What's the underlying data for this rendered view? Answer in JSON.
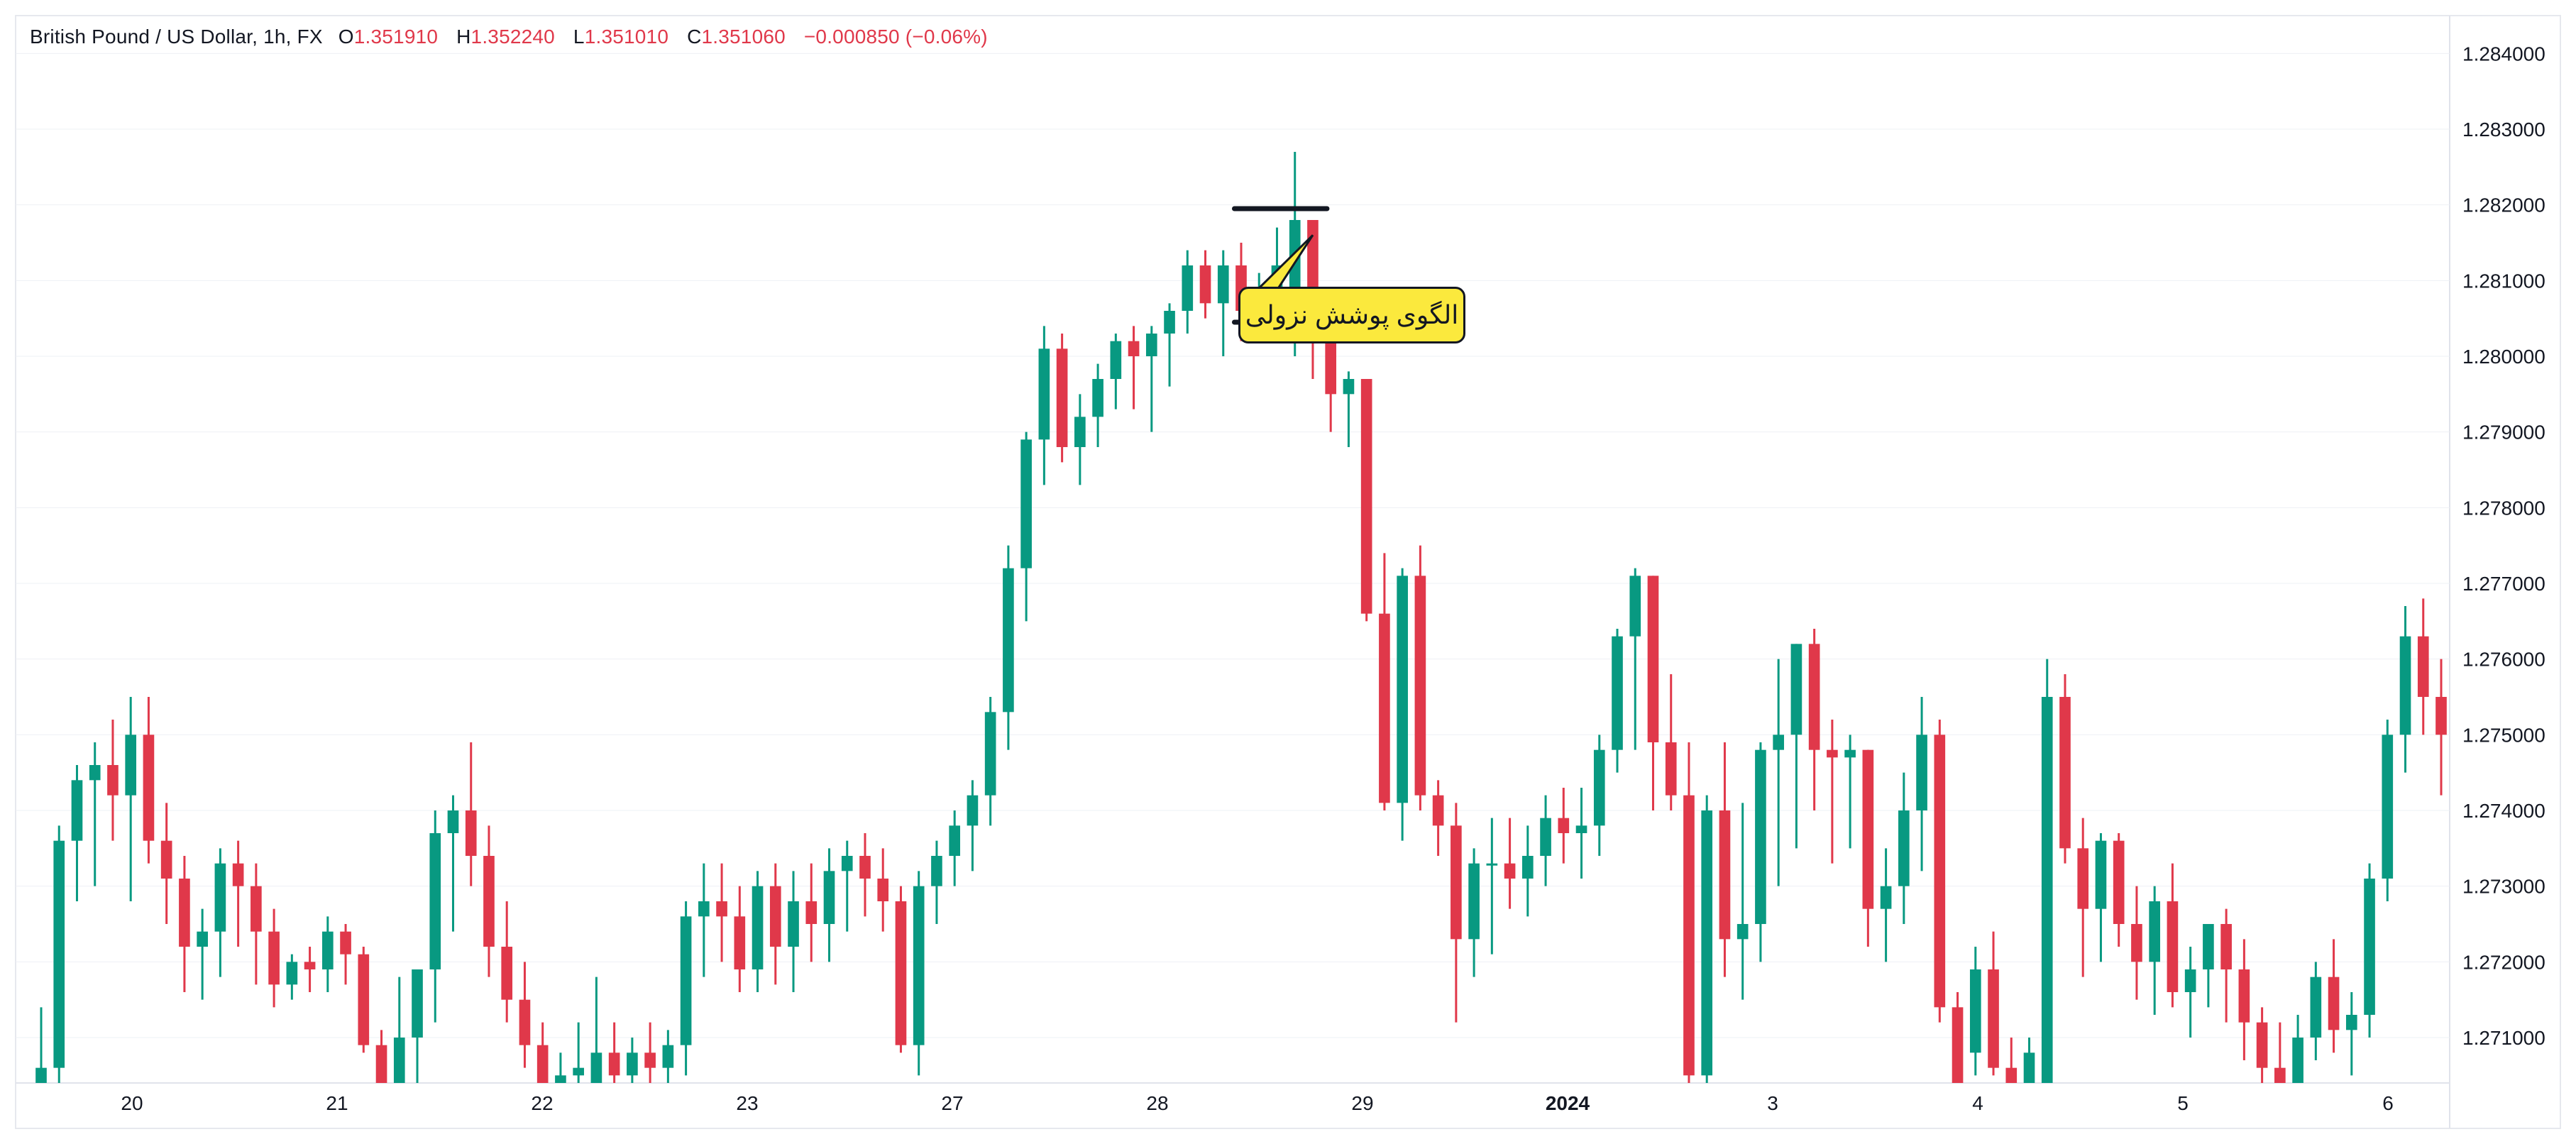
{
  "header": {
    "symbol": "British Pound / US Dollar, 1h, FX",
    "open_label": "O",
    "open": "1.351910",
    "high_label": "H",
    "high": "1.352240",
    "low_label": "L",
    "low": "1.351010",
    "close_label": "C",
    "close": "1.351060",
    "change": "−0.000850 (−0.06%)"
  },
  "annotation": {
    "text": "الگوی پوشش نزولی"
  },
  "colors": {
    "up": "#089981",
    "down": "#e0384a",
    "grid": "#eef0f4",
    "text": "#131722",
    "annotation_bg": "#fbe93d"
  },
  "chart_data": {
    "type": "candlestick",
    "ylim": [
      1.2704,
      1.2845
    ],
    "y_ticks": [
      "1.284000",
      "1.283000",
      "1.282000",
      "1.281000",
      "1.280000",
      "1.279000",
      "1.278000",
      "1.277000",
      "1.276000",
      "1.275000",
      "1.274000",
      "1.273000",
      "1.272000",
      "1.271000"
    ],
    "x_ticks": [
      "20",
      "21",
      "22",
      "23",
      "27",
      "28",
      "29",
      "2024",
      "3",
      "4",
      "5",
      "6"
    ],
    "pattern_levels": [
      1.28195,
      1.28045
    ],
    "candles": [
      [
        1.27,
        1.2714,
        1.2698,
        1.2706
      ],
      [
        1.2706,
        1.2738,
        1.27,
        1.2736
      ],
      [
        1.2736,
        1.2746,
        1.2728,
        1.2744
      ],
      [
        1.2744,
        1.2749,
        1.273,
        1.2746
      ],
      [
        1.2746,
        1.2752,
        1.2736,
        1.2742
      ],
      [
        1.2742,
        1.2755,
        1.2728,
        1.275
      ],
      [
        1.275,
        1.2755,
        1.2733,
        1.2736
      ],
      [
        1.2736,
        1.2741,
        1.2725,
        1.2731
      ],
      [
        1.2731,
        1.2734,
        1.2716,
        1.2722
      ],
      [
        1.2722,
        1.2727,
        1.2715,
        1.2724
      ],
      [
        1.2724,
        1.2735,
        1.2718,
        1.2733
      ],
      [
        1.2733,
        1.2736,
        1.2722,
        1.273
      ],
      [
        1.273,
        1.2733,
        1.2717,
        1.2724
      ],
      [
        1.2724,
        1.2727,
        1.2714,
        1.2717
      ],
      [
        1.2717,
        1.2721,
        1.2715,
        1.272
      ],
      [
        1.272,
        1.2722,
        1.2716,
        1.2719
      ],
      [
        1.2719,
        1.2726,
        1.2716,
        1.2724
      ],
      [
        1.2724,
        1.2725,
        1.2717,
        1.2721
      ],
      [
        1.2721,
        1.2722,
        1.2708,
        1.2709
      ],
      [
        1.2709,
        1.2711,
        1.2702,
        1.2703
      ],
      [
        1.2704,
        1.2718,
        1.27,
        1.271
      ],
      [
        1.271,
        1.2719,
        1.2703,
        1.2719
      ],
      [
        1.2719,
        1.274,
        1.2712,
        1.2737
      ],
      [
        1.2737,
        1.2742,
        1.2724,
        1.274
      ],
      [
        1.274,
        1.2749,
        1.273,
        1.2734
      ],
      [
        1.2734,
        1.2738,
        1.2718,
        1.2722
      ],
      [
        1.2722,
        1.2728,
        1.2712,
        1.2715
      ],
      [
        1.2715,
        1.272,
        1.2706,
        1.2709
      ],
      [
        1.2709,
        1.2712,
        1.2698,
        1.2702
      ],
      [
        1.2702,
        1.2708,
        1.27,
        1.2705
      ],
      [
        1.2705,
        1.2712,
        1.27,
        1.2706
      ],
      [
        1.27,
        1.2718,
        1.2695,
        1.2708
      ],
      [
        1.2708,
        1.2712,
        1.27,
        1.2705
      ],
      [
        1.2705,
        1.271,
        1.27,
        1.2708
      ],
      [
        1.2708,
        1.2712,
        1.27,
        1.2706
      ],
      [
        1.2706,
        1.2711,
        1.2701,
        1.2709
      ],
      [
        1.2709,
        1.2728,
        1.2705,
        1.2726
      ],
      [
        1.2726,
        1.2733,
        1.2718,
        1.2728
      ],
      [
        1.2728,
        1.2733,
        1.272,
        1.2726
      ],
      [
        1.2726,
        1.273,
        1.2716,
        1.2719
      ],
      [
        1.2719,
        1.2732,
        1.2716,
        1.273
      ],
      [
        1.273,
        1.2733,
        1.2717,
        1.2722
      ],
      [
        1.2722,
        1.2732,
        1.2716,
        1.2728
      ],
      [
        1.2728,
        1.2733,
        1.272,
        1.2725
      ],
      [
        1.2725,
        1.2735,
        1.272,
        1.2732
      ],
      [
        1.2732,
        1.2736,
        1.2724,
        1.2734
      ],
      [
        1.2734,
        1.2737,
        1.2726,
        1.2731
      ],
      [
        1.2731,
        1.2735,
        1.2724,
        1.2728
      ],
      [
        1.2728,
        1.273,
        1.2708,
        1.2709
      ],
      [
        1.2709,
        1.2732,
        1.2705,
        1.273
      ],
      [
        1.273,
        1.2736,
        1.2725,
        1.2734
      ],
      [
        1.2734,
        1.274,
        1.273,
        1.2738
      ],
      [
        1.2738,
        1.2744,
        1.2732,
        1.2742
      ],
      [
        1.2742,
        1.2755,
        1.2738,
        1.2753
      ],
      [
        1.2753,
        1.2775,
        1.2748,
        1.2772
      ],
      [
        1.2772,
        1.279,
        1.2765,
        1.2789
      ],
      [
        1.2789,
        1.2804,
        1.2783,
        1.2801
      ],
      [
        1.2801,
        1.2803,
        1.2786,
        1.2788
      ],
      [
        1.2788,
        1.2795,
        1.2783,
        1.2792
      ],
      [
        1.2792,
        1.2799,
        1.2788,
        1.2797
      ],
      [
        1.2797,
        1.2803,
        1.2793,
        1.2802
      ],
      [
        1.2802,
        1.2804,
        1.2793,
        1.28
      ],
      [
        1.28,
        1.2804,
        1.279,
        1.2803
      ],
      [
        1.2803,
        1.2807,
        1.2796,
        1.2806
      ],
      [
        1.2806,
        1.2814,
        1.2803,
        1.2812
      ],
      [
        1.2812,
        1.2814,
        1.2805,
        1.2807
      ],
      [
        1.2807,
        1.2814,
        1.28,
        1.2812
      ],
      [
        1.2812,
        1.2815,
        1.2802,
        1.2806
      ],
      [
        1.2806,
        1.2811,
        1.2804,
        1.2808
      ],
      [
        1.2808,
        1.2817,
        1.2802,
        1.2812
      ],
      [
        1.2805,
        1.2827,
        1.28,
        1.2818
      ],
      [
        1.2818,
        1.2818,
        1.2797,
        1.2804
      ],
      [
        1.2804,
        1.2806,
        1.279,
        1.2795
      ],
      [
        1.2795,
        1.2798,
        1.2788,
        1.2797
      ],
      [
        1.2797,
        1.2797,
        1.2765,
        1.2766
      ],
      [
        1.2766,
        1.2774,
        1.274,
        1.2741
      ],
      [
        1.2741,
        1.2772,
        1.2736,
        1.2771
      ],
      [
        1.2771,
        1.2775,
        1.274,
        1.2742
      ],
      [
        1.2742,
        1.2744,
        1.2734,
        1.2738
      ],
      [
        1.2738,
        1.2741,
        1.2712,
        1.2723
      ],
      [
        1.2723,
        1.2735,
        1.2718,
        1.2733
      ],
      [
        1.2733,
        1.2739,
        1.2721,
        1.2733
      ],
      [
        1.2733,
        1.2739,
        1.2727,
        1.2731
      ],
      [
        1.2731,
        1.2738,
        1.2726,
        1.2734
      ],
      [
        1.2734,
        1.2742,
        1.273,
        1.2739
      ],
      [
        1.2739,
        1.2743,
        1.2733,
        1.2737
      ],
      [
        1.2737,
        1.2743,
        1.2731,
        1.2738
      ],
      [
        1.2738,
        1.275,
        1.2734,
        1.2748
      ],
      [
        1.2748,
        1.2764,
        1.2745,
        1.2763
      ],
      [
        1.2763,
        1.2772,
        1.2748,
        1.2771
      ],
      [
        1.2771,
        1.2771,
        1.274,
        1.2749
      ],
      [
        1.2749,
        1.2758,
        1.274,
        1.2742
      ],
      [
        1.2742,
        1.2749,
        1.2702,
        1.2705
      ],
      [
        1.2705,
        1.2742,
        1.27,
        1.274
      ],
      [
        1.274,
        1.2749,
        1.2718,
        1.2723
      ],
      [
        1.2723,
        1.2741,
        1.2715,
        1.2725
      ],
      [
        1.2725,
        1.2749,
        1.272,
        1.2748
      ],
      [
        1.2748,
        1.276,
        1.273,
        1.275
      ],
      [
        1.275,
        1.2762,
        1.2735,
        1.2762
      ],
      [
        1.2762,
        1.2764,
        1.274,
        1.2748
      ],
      [
        1.2748,
        1.2752,
        1.2733,
        1.2747
      ],
      [
        1.2747,
        1.275,
        1.2735,
        1.2748
      ],
      [
        1.2748,
        1.2748,
        1.2722,
        1.2727
      ],
      [
        1.2727,
        1.2735,
        1.272,
        1.273
      ],
      [
        1.273,
        1.2745,
        1.2725,
        1.274
      ],
      [
        1.274,
        1.2755,
        1.2732,
        1.275
      ],
      [
        1.275,
        1.2752,
        1.2712,
        1.2714
      ],
      [
        1.2714,
        1.2716,
        1.27,
        1.2702
      ],
      [
        1.2708,
        1.2722,
        1.2705,
        1.2719
      ],
      [
        1.2719,
        1.2724,
        1.2705,
        1.2706
      ],
      [
        1.2706,
        1.271,
        1.2702,
        1.2704
      ],
      [
        1.2704,
        1.271,
        1.27,
        1.2708
      ],
      [
        1.27,
        1.276,
        1.2695,
        1.2755
      ],
      [
        1.2755,
        1.2758,
        1.2733,
        1.2735
      ],
      [
        1.2735,
        1.2739,
        1.2718,
        1.2727
      ],
      [
        1.2727,
        1.2737,
        1.272,
        1.2736
      ],
      [
        1.2736,
        1.2737,
        1.2722,
        1.2725
      ],
      [
        1.2725,
        1.273,
        1.2715,
        1.272
      ],
      [
        1.272,
        1.273,
        1.2713,
        1.2728
      ],
      [
        1.2728,
        1.2733,
        1.2714,
        1.2716
      ],
      [
        1.2716,
        1.2722,
        1.271,
        1.2719
      ],
      [
        1.2719,
        1.2725,
        1.2714,
        1.2725
      ],
      [
        1.2725,
        1.2727,
        1.2712,
        1.2719
      ],
      [
        1.2719,
        1.2723,
        1.2707,
        1.2712
      ],
      [
        1.2712,
        1.2714,
        1.2703,
        1.2706
      ],
      [
        1.2706,
        1.2712,
        1.27,
        1.2704
      ],
      [
        1.2704,
        1.2713,
        1.27,
        1.271
      ],
      [
        1.271,
        1.272,
        1.2707,
        1.2718
      ],
      [
        1.2718,
        1.2723,
        1.2708,
        1.2711
      ],
      [
        1.2711,
        1.2716,
        1.2705,
        1.2713
      ],
      [
        1.2713,
        1.2733,
        1.271,
        1.2731
      ],
      [
        1.2731,
        1.2752,
        1.2728,
        1.275
      ],
      [
        1.275,
        1.2767,
        1.2745,
        1.2763
      ],
      [
        1.2763,
        1.2768,
        1.275,
        1.2755
      ],
      [
        1.2755,
        1.276,
        1.2742,
        1.275
      ]
    ]
  }
}
